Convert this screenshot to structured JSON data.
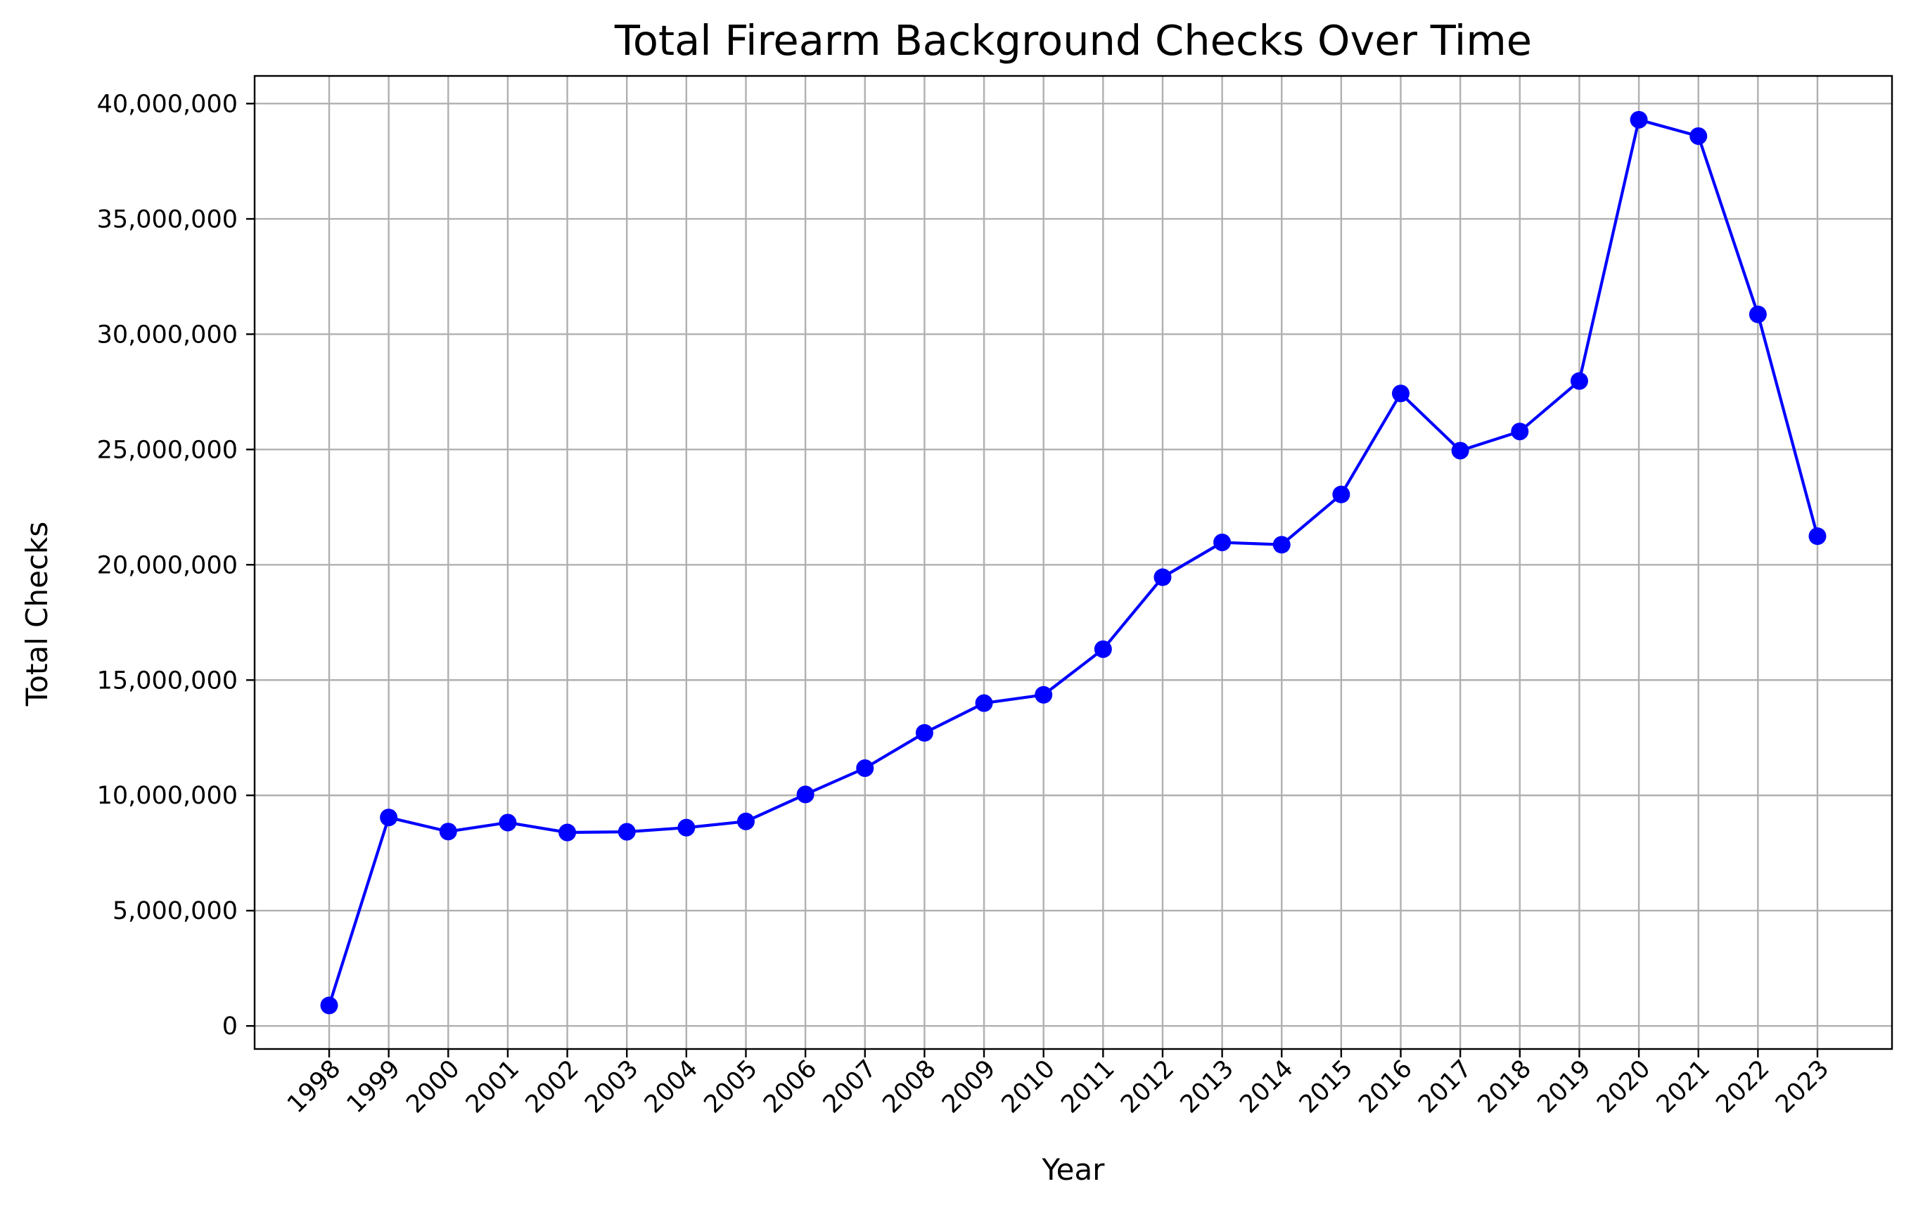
{
  "chart_data": {
    "type": "line",
    "title": "Total Firearm Background Checks Over Time",
    "xlabel": "Year",
    "ylabel": "Total Checks",
    "x": [
      "1998",
      "1999",
      "2000",
      "2001",
      "2002",
      "2003",
      "2004",
      "2005",
      "2006",
      "2007",
      "2008",
      "2009",
      "2010",
      "2011",
      "2012",
      "2013",
      "2014",
      "2015",
      "2016",
      "2017",
      "2018",
      "2019",
      "2020",
      "2021",
      "2022",
      "2023"
    ],
    "series": [
      {
        "values": [
          890000,
          9040000,
          8430000,
          8820000,
          8390000,
          8420000,
          8600000,
          8870000,
          10040000,
          11180000,
          12710000,
          14000000,
          14360000,
          16340000,
          19460000,
          20970000,
          20870000,
          23050000,
          27430000,
          24950000,
          25780000,
          27970000,
          39300000,
          38590000,
          30860000,
          21240000
        ],
        "color": "#0000ff",
        "marker": "circle"
      }
    ],
    "ylim": [
      -1000000,
      41200000
    ],
    "yticks": [
      0,
      5000000,
      10000000,
      15000000,
      20000000,
      25000000,
      30000000,
      35000000,
      40000000
    ],
    "ytick_labels": [
      "0",
      "5,000,000",
      "10,000,000",
      "15,000,000",
      "20,000,000",
      "25,000,000",
      "30,000,000",
      "35,000,000",
      "40,000,000"
    ],
    "grid": true,
    "legend": "none",
    "x_tick_rotation": "45 degrees",
    "colors": {
      "line": "#0000ff",
      "grid": "#b0b0b0",
      "axes": "#000000",
      "background": "#ffffff"
    }
  }
}
